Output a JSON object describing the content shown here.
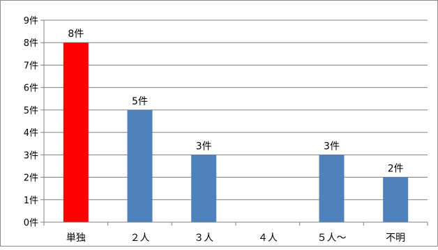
{
  "chart_data": {
    "type": "bar",
    "categories": [
      "単独",
      "２人",
      "３人",
      "４人",
      "５人～",
      "不明"
    ],
    "values": [
      8,
      5,
      3,
      0,
      3,
      2
    ],
    "data_labels": [
      "8件",
      "5件",
      "3件",
      "",
      "3件",
      "2件"
    ],
    "y_tick_labels": [
      "0件",
      "1件",
      "2件",
      "3件",
      "4件",
      "5件",
      "6件",
      "7件",
      "8件",
      "9件"
    ],
    "ylim": [
      0,
      9
    ],
    "grid": true,
    "legend": "none",
    "colors": [
      "#ff0000",
      "#4f81bd",
      "#4f81bd",
      "#4f81bd",
      "#4f81bd",
      "#4f81bd"
    ],
    "gridline_color": "#7f7f7f",
    "axis_color": "#7f7f7f"
  }
}
